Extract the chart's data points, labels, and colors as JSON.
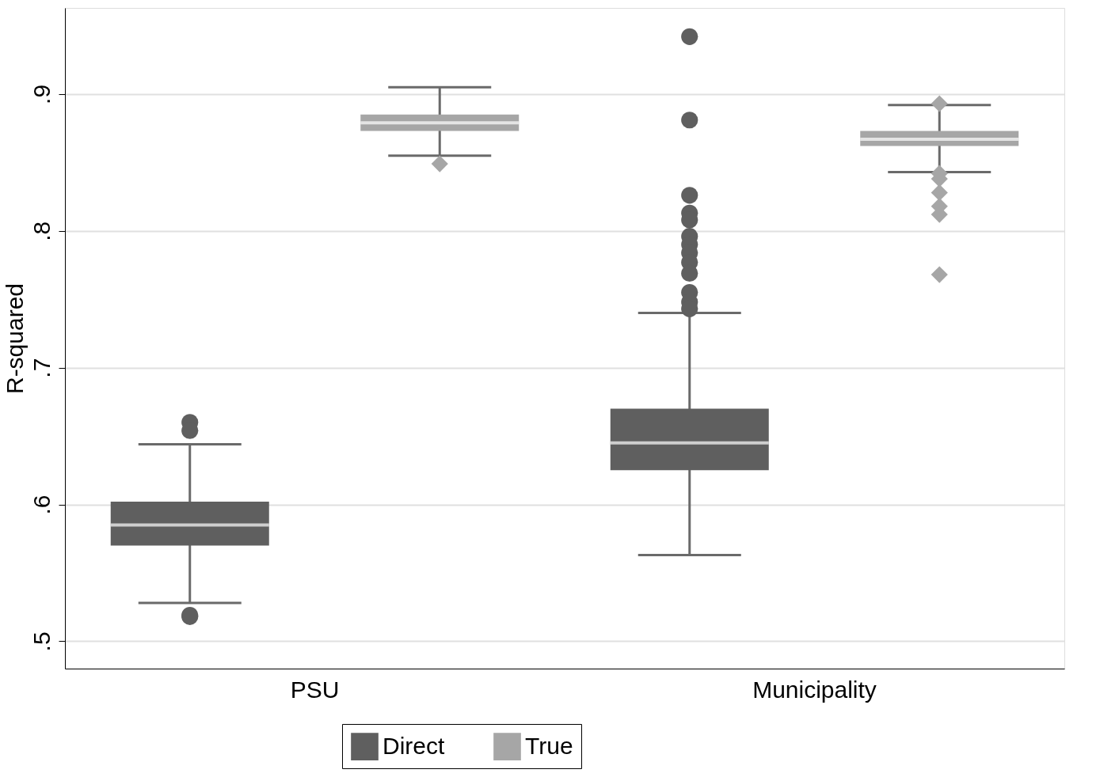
{
  "chart_data": {
    "type": "box",
    "ylabel": "R-squared",
    "categories": [
      "PSU",
      "Municipality"
    ],
    "series": [
      {
        "name": "Direct",
        "color": "#5f5f5f",
        "marker": "circle",
        "boxes": [
          {
            "low": 0.528,
            "q1": 0.57,
            "median": 0.585,
            "q3": 0.602,
            "high": 0.644,
            "outliers": [
              0.66,
              0.654,
              0.519,
              0.518
            ]
          },
          {
            "low": 0.563,
            "q1": 0.625,
            "median": 0.645,
            "q3": 0.67,
            "high": 0.74,
            "outliers": [
              0.942,
              0.881,
              0.826,
              0.813,
              0.808,
              0.796,
              0.79,
              0.784,
              0.777,
              0.769,
              0.755,
              0.748,
              0.743
            ]
          }
        ]
      },
      {
        "name": "True",
        "color": "#a6a6a6",
        "marker": "diamond",
        "boxes": [
          {
            "low": 0.855,
            "q1": 0.873,
            "median": 0.879,
            "q3": 0.885,
            "high": 0.905,
            "outliers": [
              0.849
            ]
          },
          {
            "low": 0.843,
            "q1": 0.862,
            "median": 0.867,
            "q3": 0.873,
            "high": 0.892,
            "outliers": [
              0.893,
              0.842,
              0.838,
              0.828,
              0.818,
              0.812,
              0.768
            ]
          }
        ]
      }
    ],
    "ylim": [
      0.48,
      0.963
    ],
    "yticks": [
      {
        "value": 0.5,
        "label": ".5"
      },
      {
        "value": 0.6,
        "label": ".6"
      },
      {
        "value": 0.7,
        "label": ".7"
      },
      {
        "value": 0.8,
        "label": ".8"
      },
      {
        "value": 0.9,
        "label": ".9"
      }
    ],
    "grid": "y",
    "legend": "bottom"
  }
}
